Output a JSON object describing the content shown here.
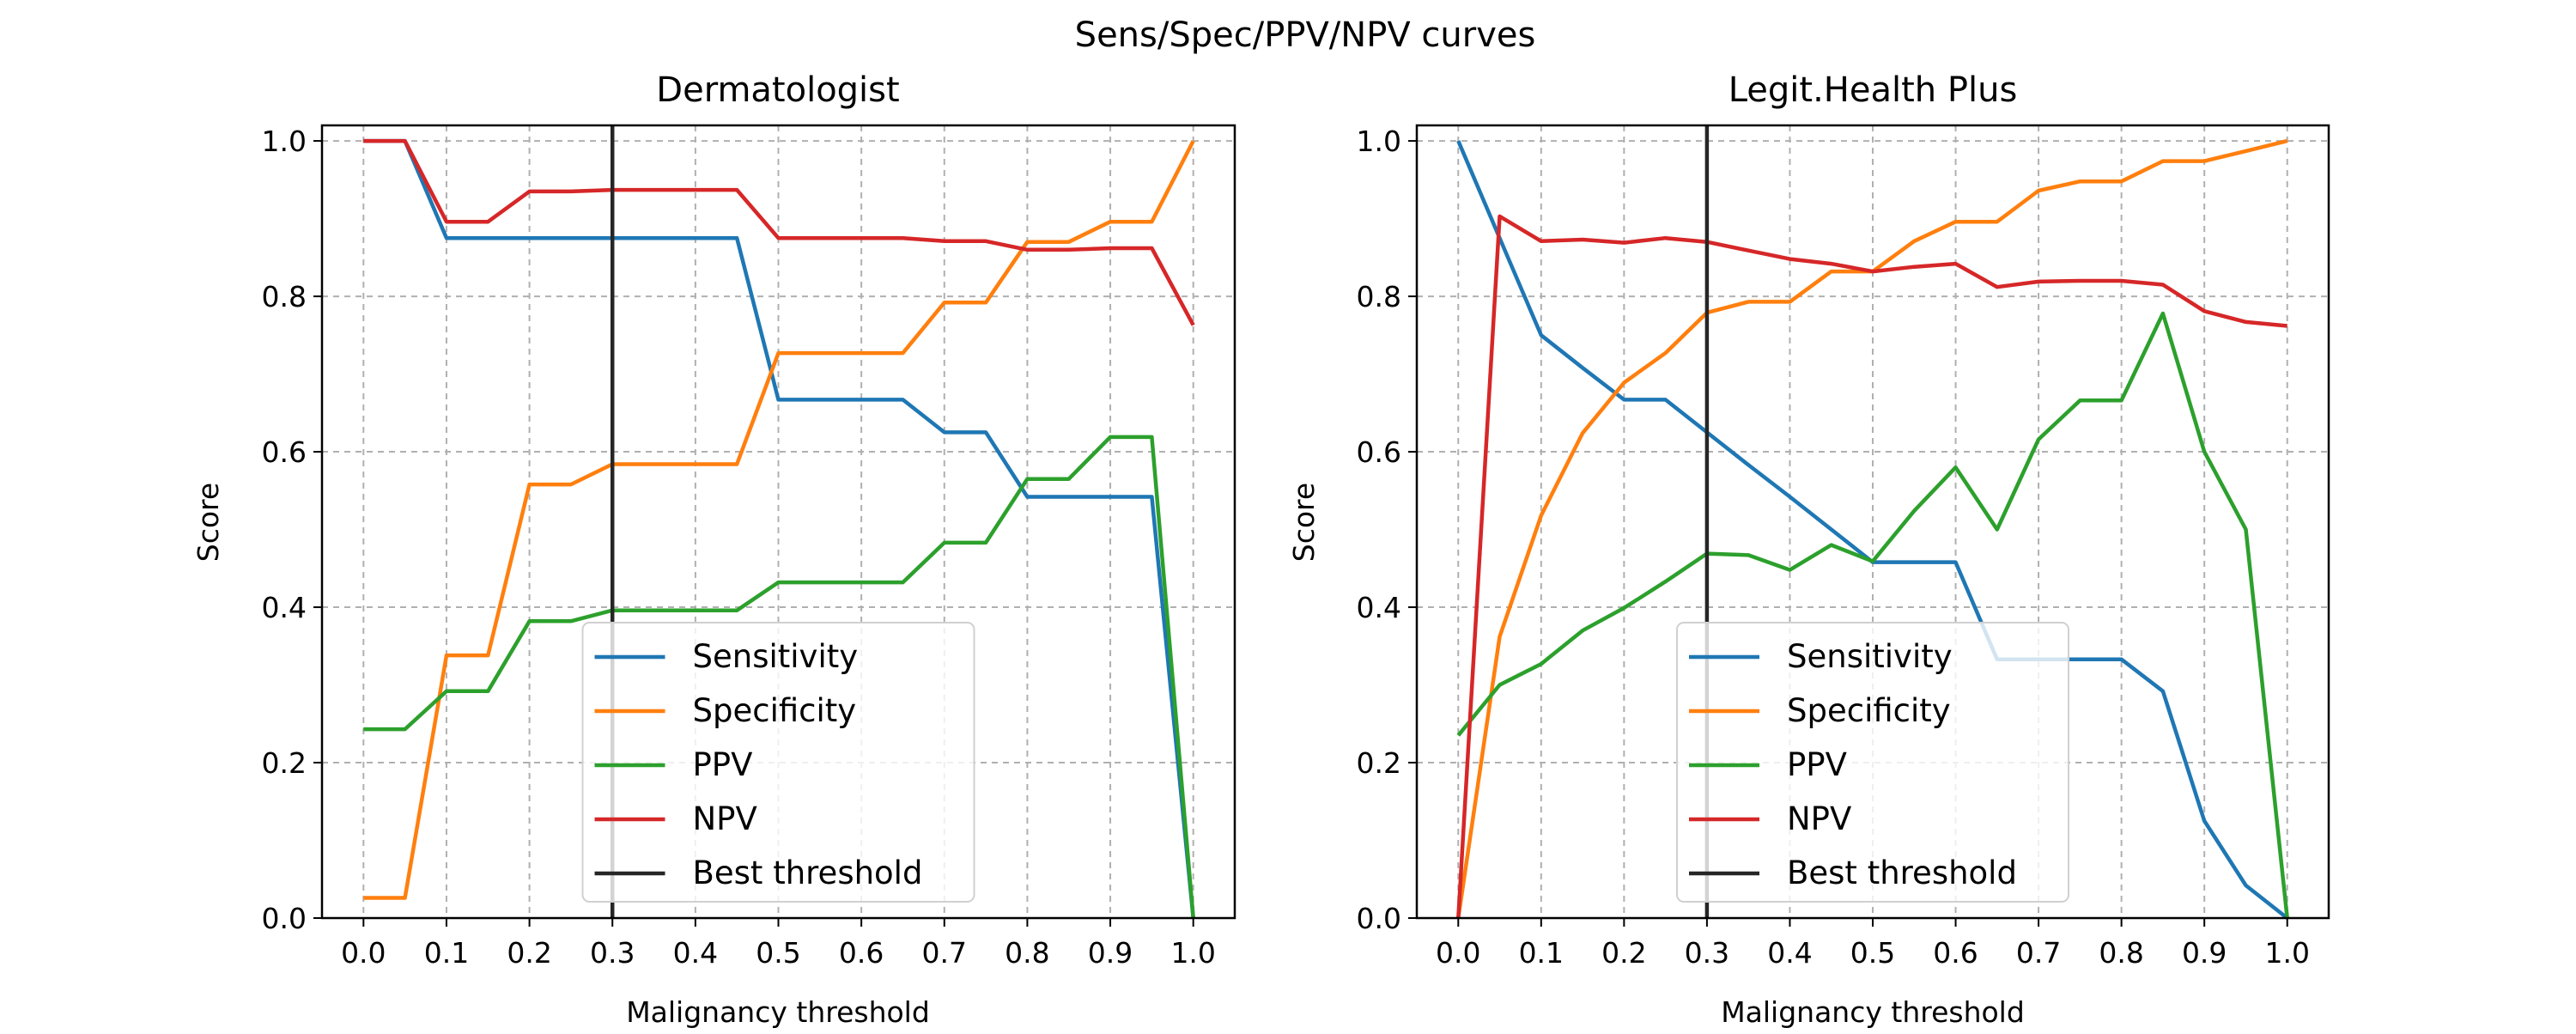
{
  "suptitle": "Sens/Spec/PPV/NPV curves",
  "colors": {
    "Sensitivity": "#1f77b4",
    "Specificity": "#ff7f0e",
    "PPV": "#2ca02c",
    "NPV": "#d62728",
    "Best threshold": "#262626",
    "grid": "#b0b0b0"
  },
  "chart_data": [
    {
      "type": "line",
      "title": "Dermatologist",
      "xlabel": "Malignancy threshold",
      "ylabel": "Score",
      "xlim": [
        -0.05,
        1.05
      ],
      "ylim": [
        0,
        1.02
      ],
      "xticks": [
        "0.0",
        "0.1",
        "0.2",
        "0.3",
        "0.4",
        "0.5",
        "0.6",
        "0.7",
        "0.8",
        "0.9",
        "1.0"
      ],
      "yticks": [
        "0.0",
        "0.2",
        "0.4",
        "0.6",
        "0.8",
        "1.0"
      ],
      "grid": true,
      "legend": "lower center",
      "best_threshold": 0.3,
      "x": [
        0,
        0.05,
        0.1,
        0.15,
        0.2,
        0.25,
        0.3,
        0.35,
        0.4,
        0.45,
        0.5,
        0.55,
        0.6,
        0.65,
        0.7,
        0.75,
        0.8,
        0.85,
        0.9,
        0.95,
        1.0
      ],
      "series": [
        {
          "name": "Sensitivity",
          "values": [
            1,
            1,
            0.875,
            0.875,
            0.875,
            0.875,
            0.875,
            0.875,
            0.875,
            0.875,
            0.667,
            0.667,
            0.667,
            0.667,
            0.625,
            0.625,
            0.542,
            0.542,
            0.542,
            0.542,
            0
          ]
        },
        {
          "name": "Specificity",
          "values": [
            0.026,
            0.026,
            0.338,
            0.338,
            0.558,
            0.558,
            0.584,
            0.584,
            0.584,
            0.584,
            0.727,
            0.727,
            0.727,
            0.727,
            0.792,
            0.792,
            0.87,
            0.87,
            0.896,
            0.896,
            1.0
          ]
        },
        {
          "name": "PPV",
          "values": [
            0.243,
            0.243,
            0.292,
            0.292,
            0.382,
            0.382,
            0.396,
            0.396,
            0.396,
            0.396,
            0.432,
            0.432,
            0.432,
            0.432,
            0.483,
            0.483,
            0.565,
            0.565,
            0.619,
            0.619,
            0
          ]
        },
        {
          "name": "NPV",
          "values": [
            1,
            1,
            0.896,
            0.896,
            0.935,
            0.935,
            0.937,
            0.937,
            0.937,
            0.937,
            0.875,
            0.875,
            0.875,
            0.875,
            0.871,
            0.871,
            0.86,
            0.86,
            0.862,
            0.862,
            0.763
          ]
        }
      ],
      "legend_entries": [
        "Sensitivity",
        "Specificity",
        "PPV",
        "NPV",
        "Best threshold"
      ]
    },
    {
      "type": "line",
      "title": "Legit.Health Plus",
      "xlabel": "Malignancy threshold",
      "ylabel": "Score",
      "xlim": [
        -0.05,
        1.05
      ],
      "ylim": [
        0,
        1.02
      ],
      "xticks": [
        "0.0",
        "0.1",
        "0.2",
        "0.3",
        "0.4",
        "0.5",
        "0.6",
        "0.7",
        "0.8",
        "0.9",
        "1.0"
      ],
      "yticks": [
        "0.0",
        "0.2",
        "0.4",
        "0.6",
        "0.8",
        "1.0"
      ],
      "grid": true,
      "legend": "lower center",
      "best_threshold": 0.3,
      "x": [
        0,
        0.05,
        0.1,
        0.15,
        0.2,
        0.25,
        0.3,
        0.35,
        0.4,
        0.45,
        0.5,
        0.55,
        0.6,
        0.65,
        0.7,
        0.75,
        0.8,
        0.85,
        0.9,
        0.95,
        1.0
      ],
      "series": [
        {
          "name": "Sensitivity",
          "values": [
            1.0,
            0.875,
            0.75,
            0.708,
            0.667,
            0.667,
            0.625,
            0.583,
            0.542,
            0.5,
            0.458,
            0.458,
            0.458,
            0.333,
            0.333,
            0.333,
            0.333,
            0.292,
            0.125,
            0.042,
            0
          ]
        },
        {
          "name": "Specificity",
          "values": [
            0,
            0.362,
            0.518,
            0.624,
            0.689,
            0.727,
            0.779,
            0.793,
            0.793,
            0.832,
            0.832,
            0.871,
            0.896,
            0.896,
            0.936,
            0.948,
            0.948,
            0.974,
            0.974,
            0.987,
            1.0
          ]
        },
        {
          "name": "PPV",
          "values": [
            0.235,
            0.3,
            0.327,
            0.37,
            0.399,
            0.433,
            0.469,
            0.467,
            0.448,
            0.48,
            0.459,
            0.524,
            0.58,
            0.5,
            0.616,
            0.666,
            0.666,
            0.778,
            0.6,
            0.5,
            0
          ]
        },
        {
          "name": "NPV",
          "values": [
            0,
            0.903,
            0.871,
            0.873,
            0.869,
            0.875,
            0.87,
            0.859,
            0.848,
            0.842,
            0.832,
            0.838,
            0.842,
            0.812,
            0.819,
            0.82,
            0.82,
            0.815,
            0.781,
            0.767,
            0.762
          ]
        }
      ],
      "legend_entries": [
        "Sensitivity",
        "Specificity",
        "PPV",
        "NPV",
        "Best threshold"
      ]
    }
  ]
}
